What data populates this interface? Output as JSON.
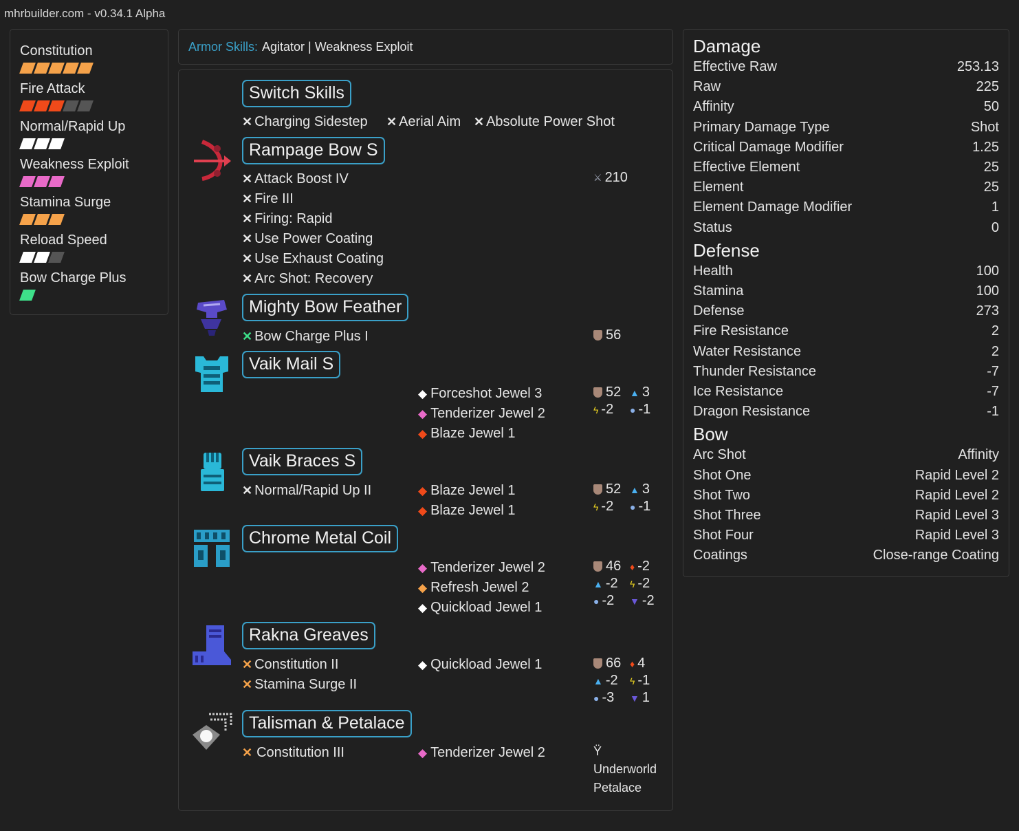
{
  "site": {
    "title": "mhrbuilder.com - v0.34.1 Alpha"
  },
  "skills": [
    {
      "name": "Constitution",
      "pips": [
        "#f5a24a",
        "#f5a24a",
        "#f5a24a",
        "#f5a24a",
        "#f5a24a"
      ]
    },
    {
      "name": "Fire Attack",
      "pips": [
        "#f04a1a",
        "#f04a1a",
        "#f04a1a",
        "#555555",
        "#555555"
      ]
    },
    {
      "name": "Normal/Rapid Up",
      "pips": [
        "#ffffff",
        "#ffffff",
        "#ffffff"
      ]
    },
    {
      "name": "Weakness Exploit",
      "pips": [
        "#e86ac8",
        "#e86ac8",
        "#e86ac8"
      ]
    },
    {
      "name": "Stamina Surge",
      "pips": [
        "#f5a24a",
        "#f5a24a",
        "#f5a24a"
      ]
    },
    {
      "name": "Reload Speed",
      "pips": [
        "#ffffff",
        "#ffffff",
        "#555555"
      ]
    },
    {
      "name": "Bow Charge Plus",
      "pips": [
        "#3ee08a"
      ]
    }
  ],
  "armor_skills": {
    "label": "Armor Skills:",
    "value": "Agitator | Weakness Exploit"
  },
  "equipment": {
    "switch_skills": {
      "title": "Switch Skills",
      "skills": [
        "Charging Sidestep",
        "Aerial Aim",
        "Absolute Power Shot"
      ]
    },
    "weapon": {
      "title": "Rampage Bow S",
      "skills": [
        "Attack Boost IV",
        "Fire III",
        "Firing: Rapid",
        "Use Power Coating",
        "Use Exhaust Coating",
        "Arc Shot: Recovery"
      ],
      "attack": "210"
    },
    "head": {
      "title": "Mighty Bow Feather",
      "skills": [
        "Bow Charge Plus I"
      ],
      "defense": "56"
    },
    "chest": {
      "title": "Vaik Mail S",
      "jewels": [
        "Forceshot Jewel 3",
        "Tenderizer Jewel 2",
        "Blaze Jewel 1"
      ],
      "defense": "52",
      "water": "3",
      "thunder": "-2",
      "ice": "-1"
    },
    "arms": {
      "title": "Vaik Braces S",
      "skills": [
        "Normal/Rapid Up II"
      ],
      "jewels": [
        "Blaze Jewel 1",
        "Blaze Jewel 1"
      ],
      "defense": "52",
      "water": "3",
      "thunder": "-2",
      "ice": "-1"
    },
    "waist": {
      "title": "Chrome Metal Coil",
      "jewels": [
        "Tenderizer Jewel 2",
        "Refresh Jewel 2",
        "Quickload Jewel 1"
      ],
      "defense": "46",
      "fire": "-2",
      "water": "-2",
      "thunder": "-2",
      "ice": "-2",
      "dragon": "-2"
    },
    "legs": {
      "title": "Rakna Greaves",
      "skills": [
        "Constitution II",
        "Stamina Surge II"
      ],
      "jewels": [
        "Quickload Jewel 1"
      ],
      "defense": "66",
      "fire": "4",
      "water": "-2",
      "thunder": "-1",
      "ice": "-3",
      "dragon": "1"
    },
    "talisman": {
      "title": "Talisman & Petalace",
      "skills": [
        "Constitution III"
      ],
      "jewels": [
        "Tenderizer Jewel 2"
      ],
      "petalace_line1": "Underworld",
      "petalace_line2": "Petalace"
    }
  },
  "stats": {
    "damage": {
      "title": "Damage",
      "rows": [
        {
          "label": "Effective Raw",
          "value": "253.13"
        },
        {
          "label": "Raw",
          "value": "225"
        },
        {
          "label": "Affinity",
          "value": "50"
        },
        {
          "label": "Primary Damage Type",
          "value": "Shot"
        },
        {
          "label": "Critical Damage Modifier",
          "value": "1.25"
        },
        {
          "label": "Effective Element",
          "value": "25"
        },
        {
          "label": "Element",
          "value": "25"
        },
        {
          "label": "Element Damage Modifier",
          "value": "1"
        },
        {
          "label": "Status",
          "value": "0"
        }
      ]
    },
    "defense": {
      "title": "Defense",
      "rows": [
        {
          "label": "Health",
          "value": "100"
        },
        {
          "label": "Stamina",
          "value": "100"
        },
        {
          "label": "Defense",
          "value": "273"
        },
        {
          "label": "Fire Resistance",
          "value": "2"
        },
        {
          "label": "Water Resistance",
          "value": "2"
        },
        {
          "label": "Thunder Resistance",
          "value": "-7"
        },
        {
          "label": "Ice Resistance",
          "value": "-7"
        },
        {
          "label": "Dragon Resistance",
          "value": "-1"
        }
      ]
    },
    "bow": {
      "title": "Bow",
      "rows": [
        {
          "label": "Arc Shot",
          "value": "Affinity"
        },
        {
          "label": "Shot One",
          "value": "Rapid Level 2"
        },
        {
          "label": "Shot Two",
          "value": "Rapid Level 2"
        },
        {
          "label": "Shot Three",
          "value": "Rapid Level 3"
        },
        {
          "label": "Shot Four",
          "value": "Rapid Level 3"
        },
        {
          "label": "Coatings",
          "value": "Close-range Coating"
        }
      ]
    }
  },
  "colors": {
    "accent": "#3aa0c8",
    "background": "#202020",
    "panel_border": "#3a3a3a"
  },
  "icons": {
    "skill_x": "crossed-swords-icon",
    "jewel": "gem-icon",
    "shield": "shield-icon",
    "water": "water-drop-icon",
    "fire": "flame-icon",
    "thunder": "thunder-icon",
    "ice": "ice-icon",
    "dragon": "dragon-icon",
    "petalace": "petalace-icon"
  }
}
